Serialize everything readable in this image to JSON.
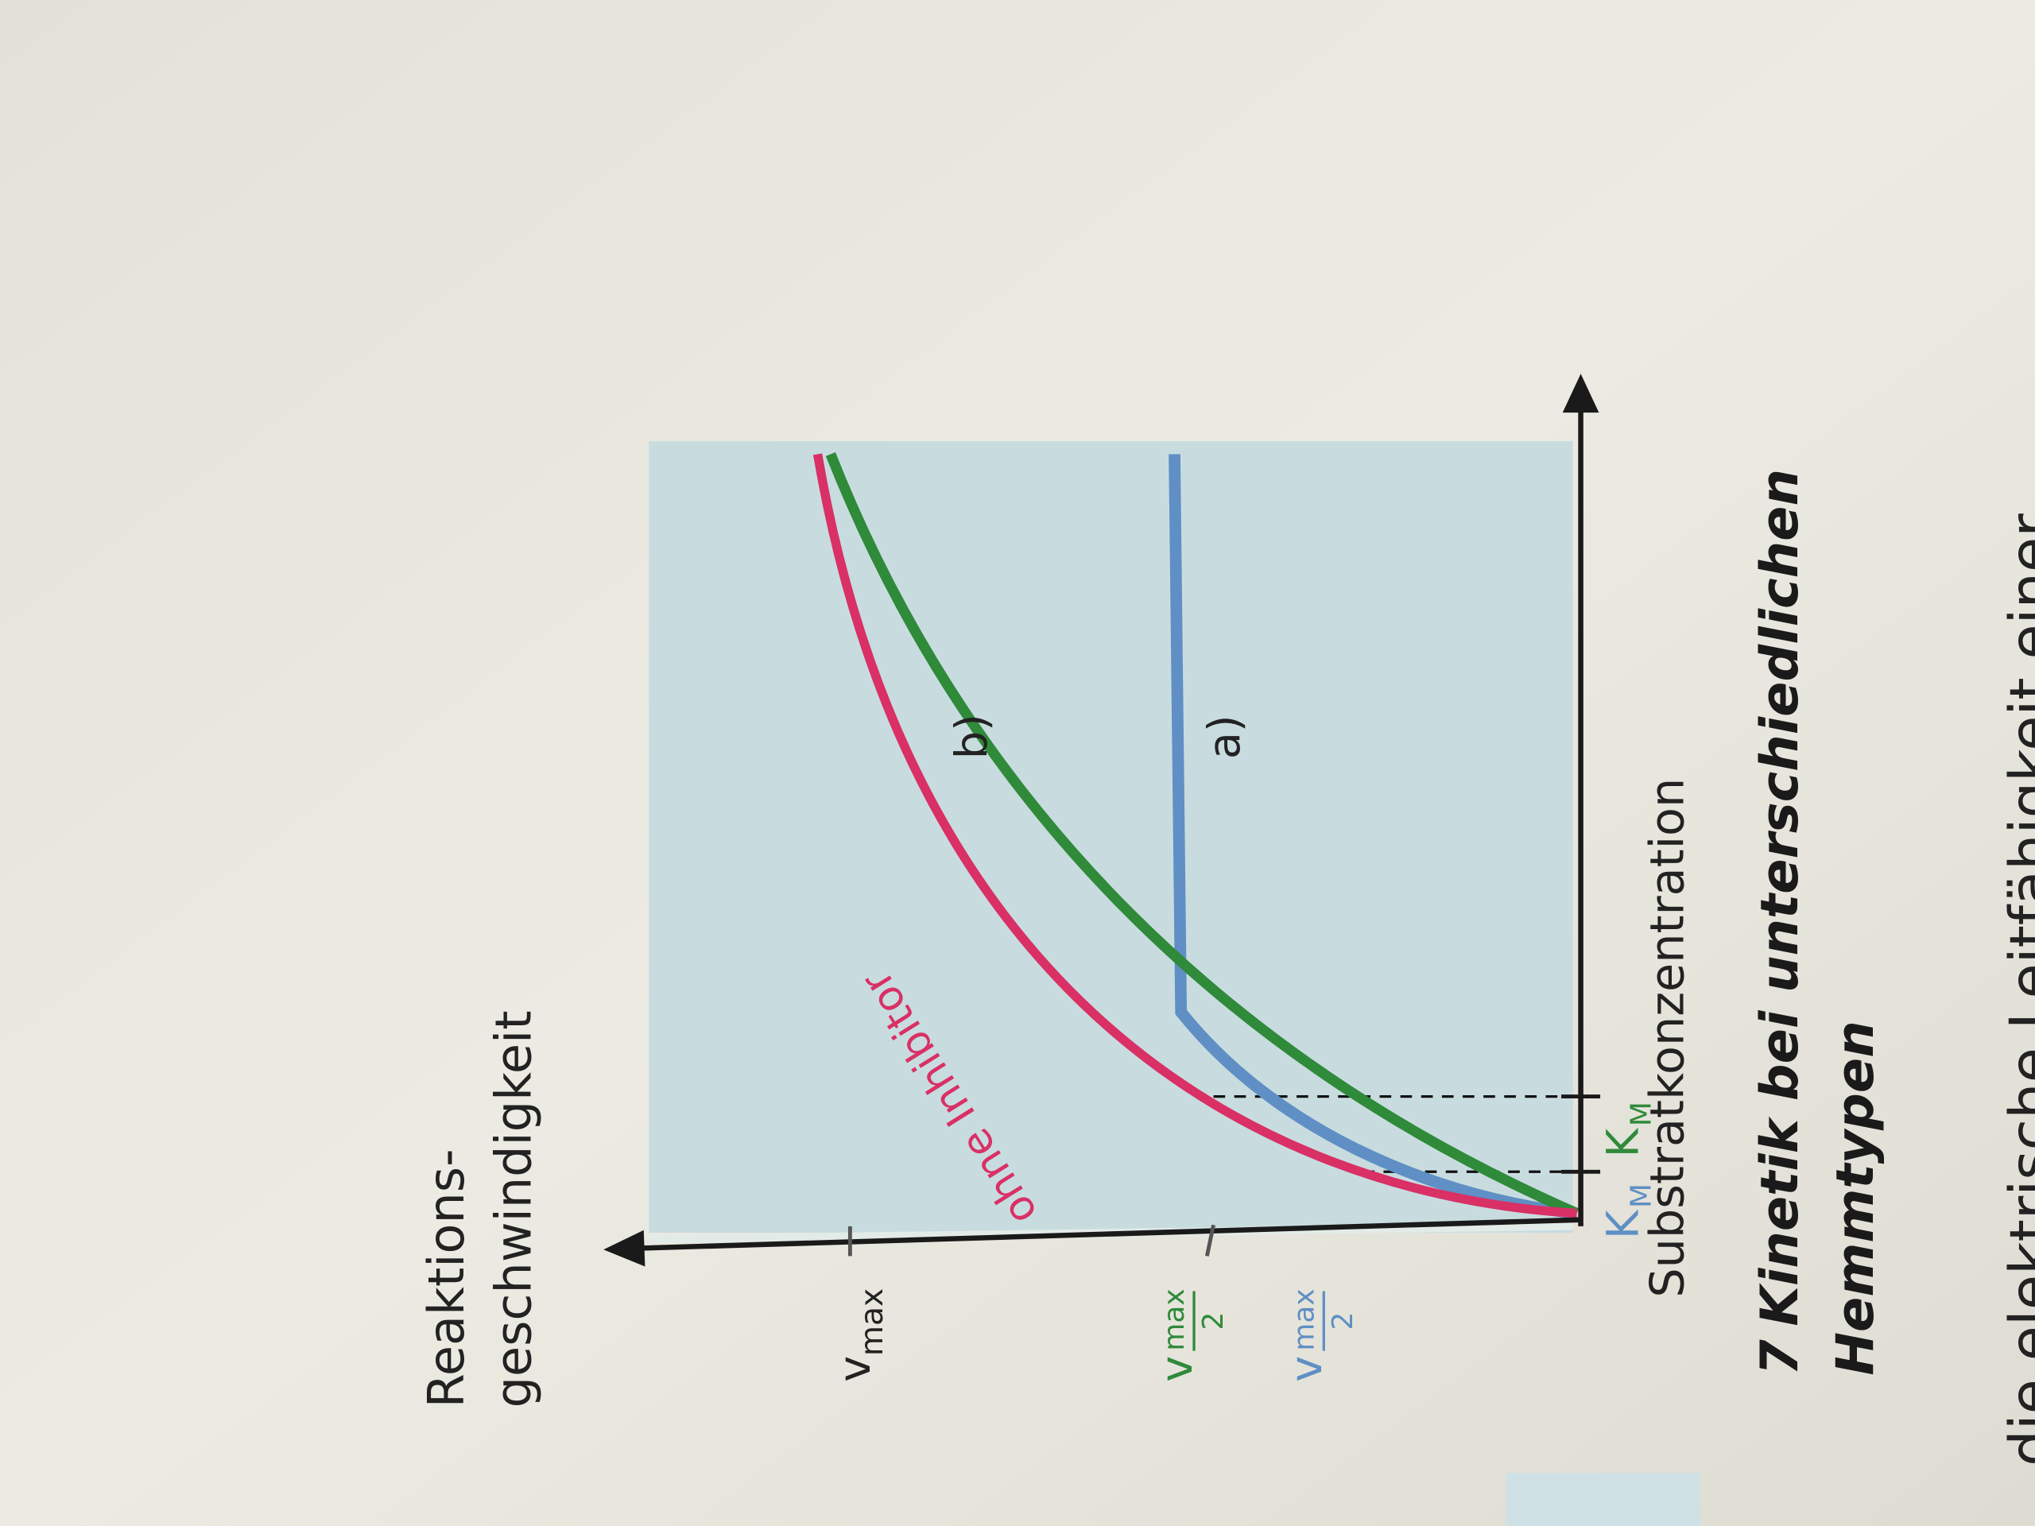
{
  "figure": {
    "y_axis_label": [
      "Reaktions-",
      "geschwindigkeit"
    ],
    "x_axis_label": "Substratkonzentration",
    "y_ticks": [
      {
        "symbol": "v",
        "subscript": "max"
      },
      {
        "symbol": "v",
        "subscript": "max",
        "denominator": "2"
      },
      {
        "symbol": "v",
        "subscript": "max",
        "denominator": "2"
      }
    ],
    "x_ticks": [
      {
        "symbol": "K",
        "subscript": "M"
      },
      {
        "symbol": "K",
        "subscript": "M"
      }
    ],
    "curve_labels": [
      "ohne Inhibitor",
      "b)",
      "a)"
    ]
  },
  "caption": {
    "number": "7",
    "lines": [
      "Kinetik bei unterschiedlichen",
      "Hemmtypen"
    ]
  },
  "body_text": "die elektrische Leitfähigkeit einer"
}
